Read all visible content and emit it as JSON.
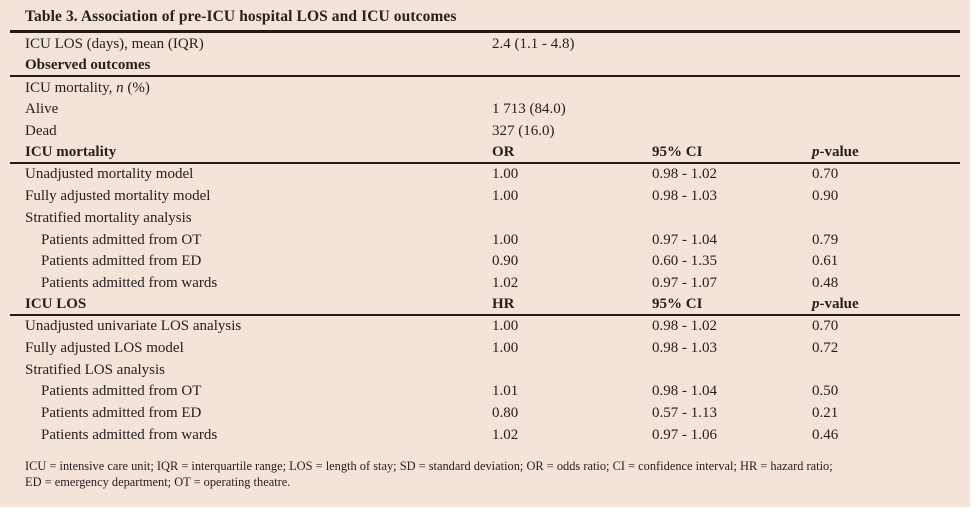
{
  "panel": {
    "background_color": "#f4e3d8",
    "rule_color": "#231a16",
    "text_color": "#26201f"
  },
  "table": {
    "title": "Table 3. Association of pre-ICU hospital LOS and ICU outcomes",
    "columns": [
      "",
      "OR / HR",
      "95% CI",
      "p-value"
    ],
    "rows": [
      {
        "label": "ICU LOS (days), mean (IQR)",
        "c1": "2.4 (1.1 - 4.8)",
        "c2": "",
        "c3": ""
      },
      {
        "label": "Observed outcomes",
        "bold": true,
        "rule": true
      },
      {
        "label_parts": {
          "pre": "ICU mortality, ",
          "italic": "n",
          "post": " (%)"
        }
      },
      {
        "label": "Alive",
        "c1": "1 713 (84.0)"
      },
      {
        "label": "Dead",
        "c1": "327 (16.0)"
      },
      {
        "label": "ICU mortality",
        "bold": true,
        "rule": true,
        "c1": "OR",
        "c2": "95% CI",
        "c3_parts": {
          "pre": "",
          "italic": "p",
          "post": "-value"
        }
      },
      {
        "label": "Unadjusted mortality model",
        "c1": "1.00",
        "c2": "0.98 - 1.02",
        "c3": "0.70"
      },
      {
        "label": "Fully adjusted mortality model",
        "c1": "1.00",
        "c2": "0.98 - 1.03",
        "c3": "0.90"
      },
      {
        "label": "Stratified mortality analysis"
      },
      {
        "label": "Patients admitted from OT",
        "indent": true,
        "c1": "1.00",
        "c2": "0.97 - 1.04",
        "c3": "0.79"
      },
      {
        "label": "Patients admitted from ED",
        "indent": true,
        "c1": "0.90",
        "c2": "0.60 - 1.35",
        "c3": "0.61"
      },
      {
        "label": "Patients admitted from wards",
        "indent": true,
        "c1": "1.02",
        "c2": "0.97 - 1.07",
        "c3": "0.48"
      },
      {
        "label": "ICU LOS",
        "bold": true,
        "rule": true,
        "c1": "HR",
        "c2": "95% CI",
        "c3_parts": {
          "pre": "",
          "italic": "p",
          "post": "-value"
        }
      },
      {
        "label": "Unadjusted univariate LOS analysis",
        "c1": "1.00",
        "c2": "0.98 - 1.02",
        "c3": "0.70"
      },
      {
        "label": "Fully adjusted LOS model",
        "c1": "1.00",
        "c2": "0.98 - 1.03",
        "c3": "0.72"
      },
      {
        "label": "Stratified LOS analysis"
      },
      {
        "label": "Patients admitted from OT",
        "indent": true,
        "c1": "1.01",
        "c2": "0.98 - 1.04",
        "c3": "0.50"
      },
      {
        "label": "Patients admitted from ED",
        "indent": true,
        "c1": "0.80",
        "c2": "0.57 - 1.13",
        "c3": "0.21"
      },
      {
        "label": "Patients admitted from wards",
        "indent": true,
        "c1": "1.02",
        "c2": "0.97 - 1.06",
        "c3": "0.46"
      }
    ],
    "footnote_lines": [
      "ICU = intensive care unit; IQR = interquartile range; LOS = length of stay; SD = standard deviation; OR = odds ratio; CI = confidence interval; HR = hazard ratio;",
      "ED = emergency department; OT = operating theatre."
    ]
  }
}
